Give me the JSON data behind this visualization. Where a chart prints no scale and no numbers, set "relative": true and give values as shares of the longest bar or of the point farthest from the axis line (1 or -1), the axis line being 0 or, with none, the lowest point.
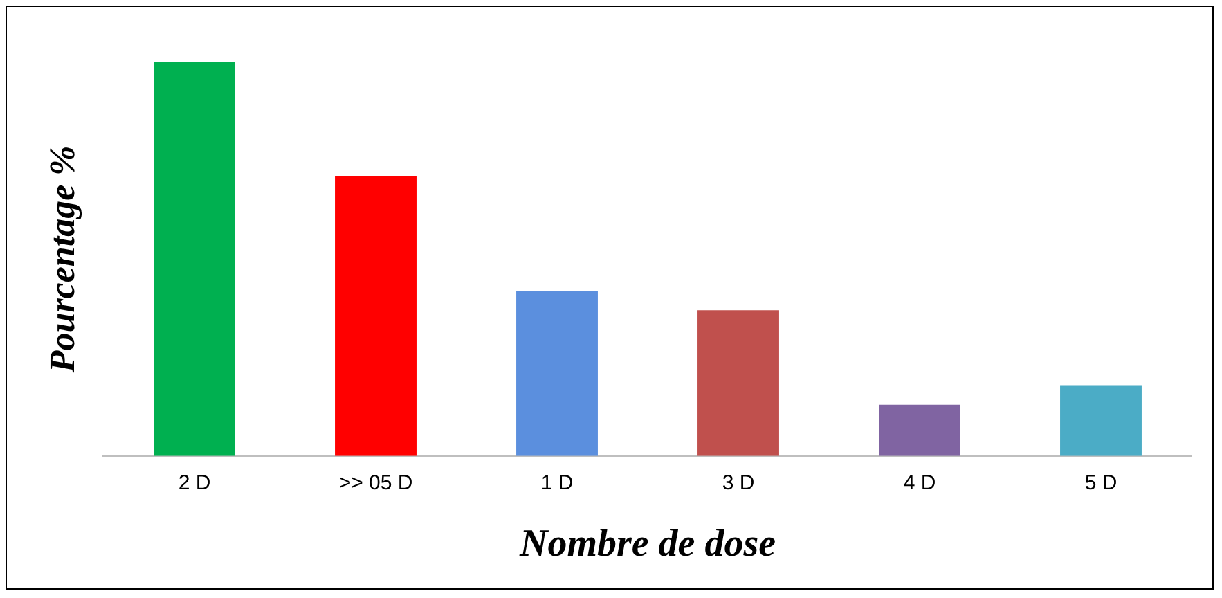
{
  "chart_data": {
    "type": "bar",
    "relative": true,
    "xlabel": "Nombre de dose",
    "ylabel": "Pourcentage %",
    "categories": [
      "2 D",
      ">> 05 D",
      "1 D",
      "3 D",
      "4 D",
      "5 D"
    ],
    "values": [
      1,
      0.71,
      0.42,
      0.37,
      0.13,
      0.18
    ],
    "colors": [
      "#00b050",
      "#ff0000",
      "#5b8fde",
      "#c0504d",
      "#8064a2",
      "#4bacc6"
    ],
    "grid": false,
    "legend": false
  }
}
